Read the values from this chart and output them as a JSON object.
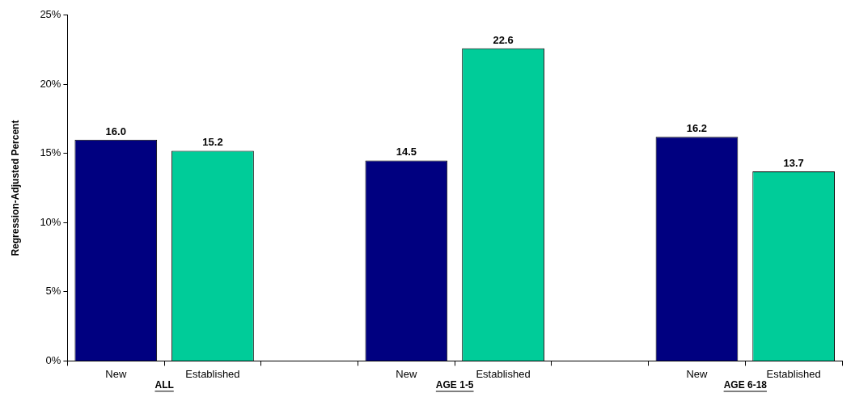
{
  "chart_data": {
    "type": "bar",
    "ylabel": "Regression-Adjusted Percent",
    "categories": [
      "New",
      "Established",
      null,
      "New",
      "Established",
      null,
      "New",
      "Established"
    ],
    "values": [
      16.0,
      15.2,
      null,
      14.5,
      22.6,
      null,
      16.2,
      13.7
    ],
    "colors": [
      "#000080",
      "#00cc99",
      null,
      "#000080",
      "#00cc99",
      null,
      "#000080",
      "#00cc99"
    ],
    "ylim": [
      0,
      25
    ],
    "yticks": [
      {
        "value": 0,
        "label": "0%"
      },
      {
        "value": 5,
        "label": "5%"
      },
      {
        "value": 10,
        "label": "10%"
      },
      {
        "value": 15,
        "label": "15%"
      },
      {
        "value": 20,
        "label": "20%"
      },
      {
        "value": 25,
        "label": "25%"
      }
    ],
    "value_labels": [
      "16.0",
      "15.2",
      null,
      "14.5",
      "22.6",
      null,
      "16.2",
      "13.7"
    ],
    "grid": false,
    "legend": false,
    "annotations": [
      "ALL",
      "AGE 1-5",
      "AGE 6-18"
    ]
  }
}
